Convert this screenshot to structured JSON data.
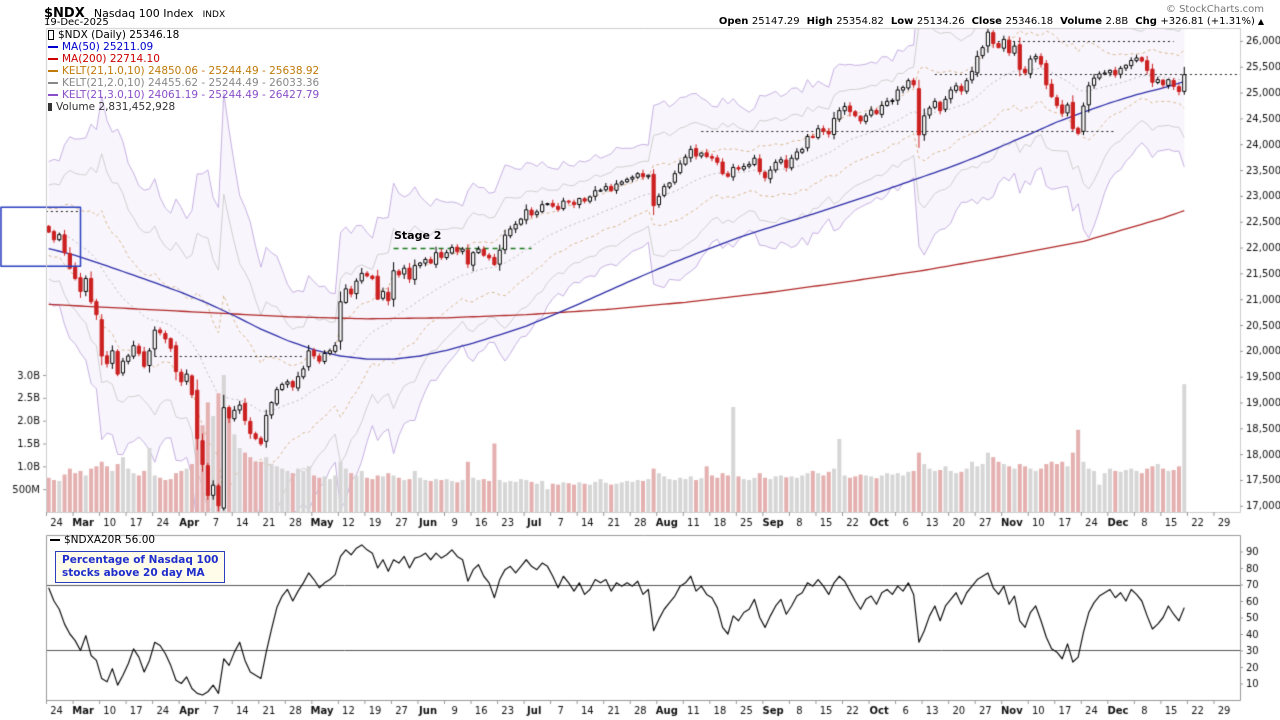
{
  "header": {
    "symbol": "$NDX",
    "name": "Nasdaq 100 Index",
    "exchange": "INDX",
    "date": "19-Dec-2025",
    "copyright": "© StockCharts.com",
    "quote_fields": [
      {
        "label": "Open",
        "value": "25147.29"
      },
      {
        "label": "High",
        "value": "25354.82"
      },
      {
        "label": "Low",
        "value": "25134.26"
      },
      {
        "label": "Close",
        "value": "25346.18"
      },
      {
        "label": "Volume",
        "value": "2.8B"
      },
      {
        "label": "Chg",
        "value": "+326.81 (+1.31%)"
      }
    ],
    "direction_arrow": "▲"
  },
  "main_legend": {
    "items": [
      {
        "label": "$NDX (Daily) 25346.18",
        "color": "#000000",
        "icon": "candlestick-icon"
      },
      {
        "label": "MA(50) 25211.09",
        "color": "#0000cc",
        "icon": "line-swatch-icon"
      },
      {
        "label": "MA(200) 22714.10",
        "color": "#cc0000",
        "icon": "line-swatch-icon"
      },
      {
        "label": "KELT(21,1.0,10) 24850.06 - 25244.49 - 25638.92",
        "color": "#c07a0a",
        "icon": "line-swatch-icon"
      },
      {
        "label": "KELT(21,2.0,10) 24455.62 - 25244.49 - 26033.36",
        "color": "#888888",
        "icon": "line-swatch-icon"
      },
      {
        "label": "KELT(21,3.0,10) 24061.19 - 25244.49 - 26427.79",
        "color": "#8a4fc8",
        "icon": "line-swatch-icon"
      },
      {
        "label": "Volume 2,831,452,928",
        "color": "#333333",
        "icon": "volume-bars-icon"
      }
    ]
  },
  "indicator_legend": {
    "label": "$NDXA20R 56.00",
    "color": "#000000"
  },
  "annotations": {
    "stage2": "Stage 2",
    "note_line1": "Percentage of Nasdaq 100",
    "note_line2": "stocks above 20 day MA"
  },
  "chart_data": [
    {
      "type": "candlestick",
      "title": "$NDX (Daily)",
      "last_close": 25346.18,
      "y_ticks": [
        26000,
        25500,
        25000,
        24500,
        24000,
        23500,
        23000,
        22500,
        22000,
        21500,
        21000,
        20500,
        20000,
        19500,
        19000,
        18500,
        18000,
        17500,
        17000
      ],
      "y_range": [
        16880,
        26250
      ],
      "volume_ticks": [
        [
          "3.0B",
          3
        ],
        [
          "2.5B",
          2.5
        ],
        [
          "2.0B",
          2
        ],
        [
          "1.5B",
          1.5
        ],
        [
          "1.0B",
          1
        ],
        [
          "500M",
          0.5
        ]
      ],
      "x_labels": [
        "24",
        "Mar",
        "10",
        "17",
        "24",
        "Apr",
        "7",
        "14",
        "21",
        "28",
        "May",
        "12",
        "19",
        "27",
        "Jun",
        "9",
        "16",
        "23",
        "Jul",
        "7",
        "14",
        "21",
        "28",
        "Aug",
        "11",
        "18",
        "25",
        "Sep",
        "8",
        "15",
        "22",
        "Oct",
        "6",
        "13",
        "20",
        "27",
        "Nov",
        "10",
        "17",
        "24",
        "Dec",
        "8",
        "15",
        "22",
        "29"
      ],
      "days_per_week": 5,
      "weeks_shown": 45,
      "prev_close": 22420,
      "closes": [
        22300,
        22150,
        22250,
        21900,
        21600,
        21400,
        21150,
        21400,
        20950,
        20700,
        19900,
        19750,
        20000,
        19550,
        19800,
        19900,
        20100,
        19950,
        19700,
        20000,
        20400,
        20350,
        20230,
        20050,
        19600,
        19400,
        19550,
        19150,
        18300,
        17800,
        17200,
        17400,
        17000,
        18900,
        18700,
        18850,
        18950,
        18650,
        18400,
        18300,
        18200,
        18750,
        19000,
        19250,
        19350,
        19400,
        19300,
        19500,
        19650,
        20000,
        19900,
        19800,
        19950,
        20000,
        20100,
        20950,
        21200,
        21100,
        21350,
        21500,
        21450,
        21400,
        21000,
        21150,
        20970,
        21550,
        21470,
        21600,
        21390,
        21650,
        21700,
        21770,
        21700,
        21900,
        21810,
        21900,
        22000,
        21920,
        21970,
        21680,
        21900,
        21970,
        21850,
        21800,
        21670,
        21950,
        22240,
        22360,
        22450,
        22550,
        22730,
        22630,
        22690,
        22830,
        22850,
        22800,
        22740,
        22900,
        22880,
        22830,
        22950,
        22900,
        22980,
        23100,
        23110,
        23180,
        23100,
        23230,
        23270,
        23320,
        23360,
        23430,
        23370,
        23400,
        22810,
        22990,
        23180,
        23250,
        23430,
        23620,
        23750,
        23900,
        23770,
        23830,
        23760,
        23730,
        23650,
        23430,
        23380,
        23550,
        23520,
        23570,
        23610,
        23730,
        23470,
        23350,
        23500,
        23650,
        23700,
        23550,
        23730,
        23850,
        23900,
        24150,
        24140,
        24300,
        24250,
        24200,
        24500,
        24650,
        24730,
        24630,
        24550,
        24450,
        24550,
        24660,
        24590,
        24750,
        24830,
        24850,
        25050,
        25100,
        25230,
        25150,
        24180,
        24550,
        24700,
        24830,
        24650,
        24870,
        25050,
        25130,
        25030,
        25230,
        25410,
        25700,
        25870,
        26170,
        25950,
        25870,
        26030,
        25770,
        25900,
        25450,
        25380,
        25650,
        25700,
        25550,
        25150,
        24920,
        24750,
        24600,
        24760,
        24300,
        24210,
        24740,
        25130,
        25280,
        25360,
        25380,
        25430,
        25340,
        25470,
        25530,
        25620,
        25670,
        25610,
        25430,
        25200,
        25250,
        25150,
        25250,
        25120,
        25020,
        25346.18
      ],
      "volumes_billions": [
        0.75,
        0.7,
        0.68,
        0.82,
        0.95,
        0.85,
        0.9,
        0.8,
        0.95,
        1.0,
        1.1,
        1.0,
        0.9,
        1.05,
        1.2,
        0.95,
        0.85,
        0.8,
        0.9,
        1.4,
        0.8,
        0.75,
        0.7,
        0.72,
        0.85,
        0.9,
        0.95,
        1.05,
        1.6,
        1.9,
        2.4,
        2.1,
        2.6,
        3.0,
        2.2,
        1.7,
        1.4,
        1.3,
        1.2,
        1.1,
        1.1,
        1.2,
        1.05,
        1.0,
        0.95,
        0.9,
        0.85,
        0.95,
        0.9,
        1.0,
        0.8,
        0.75,
        0.78,
        0.72,
        0.8,
        1.1,
        0.95,
        0.85,
        0.8,
        0.9,
        0.75,
        0.72,
        0.8,
        0.78,
        0.85,
        0.8,
        0.75,
        0.7,
        0.72,
        0.9,
        0.75,
        0.7,
        0.68,
        0.72,
        0.7,
        0.72,
        0.68,
        0.65,
        0.7,
        1.1,
        0.75,
        0.7,
        0.72,
        0.68,
        1.5,
        0.7,
        0.65,
        0.68,
        0.66,
        0.72,
        0.7,
        0.66,
        0.62,
        0.68,
        0.5,
        0.62,
        0.6,
        0.65,
        0.63,
        0.6,
        0.65,
        0.62,
        0.6,
        0.66,
        0.72,
        0.64,
        0.6,
        0.62,
        0.65,
        0.68,
        0.66,
        0.7,
        0.68,
        0.72,
        0.95,
        0.85,
        0.78,
        0.72,
        0.7,
        0.75,
        0.72,
        0.78,
        0.7,
        0.74,
        1.0,
        0.8,
        0.75,
        0.85,
        0.8,
        2.3,
        0.78,
        0.72,
        0.7,
        0.75,
        0.85,
        0.75,
        0.72,
        0.78,
        0.8,
        0.76,
        0.78,
        0.75,
        0.8,
        0.85,
        0.9,
        0.85,
        0.8,
        0.88,
        0.95,
        1.6,
        0.8,
        0.75,
        0.78,
        0.82,
        0.8,
        0.78,
        0.74,
        0.8,
        0.85,
        0.82,
        0.85,
        0.8,
        0.88,
        0.9,
        1.3,
        1.05,
        0.95,
        0.9,
        0.92,
        1.0,
        0.9,
        0.85,
        0.88,
        0.95,
        1.1,
        1.0,
        1.05,
        1.3,
        1.2,
        1.1,
        1.05,
        1.0,
        0.95,
        1.05,
        1.0,
        0.95,
        0.9,
        0.95,
        1.05,
        1.1,
        1.05,
        1.1,
        1.0,
        1.3,
        1.8,
        1.1,
        0.95,
        0.9,
        0.6,
        0.85,
        0.95,
        0.9,
        0.88,
        0.92,
        0.95,
        0.9,
        0.85,
        0.95,
        1.0,
        1.05,
        0.95,
        0.9,
        0.92,
        1.0,
        2.8
      ],
      "ma50_anchors": [
        [
          0,
          21980
        ],
        [
          5,
          21850
        ],
        [
          10,
          21680
        ],
        [
          15,
          21500
        ],
        [
          20,
          21320
        ],
        [
          25,
          21130
        ],
        [
          30,
          20920
        ],
        [
          35,
          20680
        ],
        [
          40,
          20420
        ],
        [
          45,
          20200
        ],
        [
          50,
          20020
        ],
        [
          55,
          19900
        ],
        [
          60,
          19840
        ],
        [
          65,
          19840
        ],
        [
          70,
          19900
        ],
        [
          75,
          20010
        ],
        [
          80,
          20150
        ],
        [
          85,
          20310
        ],
        [
          90,
          20480
        ],
        [
          95,
          20690
        ],
        [
          100,
          20910
        ],
        [
          105,
          21140
        ],
        [
          110,
          21370
        ],
        [
          115,
          21590
        ],
        [
          120,
          21800
        ],
        [
          125,
          22000
        ],
        [
          130,
          22190
        ],
        [
          135,
          22360
        ],
        [
          140,
          22520
        ],
        [
          145,
          22680
        ],
        [
          150,
          22850
        ],
        [
          155,
          23020
        ],
        [
          160,
          23200
        ],
        [
          165,
          23380
        ],
        [
          170,
          23560
        ],
        [
          175,
          23760
        ],
        [
          180,
          23980
        ],
        [
          185,
          24200
        ],
        [
          190,
          24430
        ],
        [
          195,
          24620
        ],
        [
          200,
          24800
        ],
        [
          205,
          24960
        ],
        [
          210,
          25090
        ],
        [
          214,
          25211
        ]
      ],
      "ma200_anchors": [
        [
          0,
          20900
        ],
        [
          15,
          20820
        ],
        [
          30,
          20740
        ],
        [
          45,
          20660
        ],
        [
          60,
          20620
        ],
        [
          75,
          20640
        ],
        [
          90,
          20700
        ],
        [
          105,
          20800
        ],
        [
          120,
          20940
        ],
        [
          135,
          21120
        ],
        [
          150,
          21330
        ],
        [
          165,
          21560
        ],
        [
          180,
          21830
        ],
        [
          195,
          22120
        ],
        [
          205,
          22420
        ],
        [
          210,
          22570
        ],
        [
          214,
          22714
        ]
      ],
      "keltner": {
        "period": 21,
        "atr_period": 10,
        "multipliers": [
          1,
          2,
          3
        ],
        "colors": {
          "k1": "#d8b78e",
          "k2": "#cfcfcf",
          "k3": "#c6b0e2",
          "fill": "rgba(198,180,228,0.13)",
          "center": "#bbbbbb"
        }
      },
      "hline_annotations": [
        {
          "value": 22700,
          "from_day": -9,
          "to_day": 6
        },
        {
          "value": 19900,
          "from_day": 20,
          "to_day": 48
        },
        {
          "value": 24250,
          "from_day": 123,
          "to_day": 201
        },
        {
          "value": 25350,
          "from_day": 167,
          "to_day": 226
        },
        {
          "value": 26000,
          "from_day": 177,
          "to_day": 212
        }
      ],
      "box_annotation": {
        "from_day": -9,
        "to_day": 6,
        "top": 22780,
        "bottom": 21640,
        "color": "#2b3fbf"
      },
      "stage2_line": {
        "value": 21980,
        "from_day": 65,
        "to_day": 91,
        "color": "#1a7a1a"
      },
      "colors": {
        "up": "#ffffff",
        "up_border": "#000000",
        "down": "#cc2020",
        "vol_up": "#d6d6d6",
        "vol_down": "#e4b0b0",
        "ma50": "#2e2ea8",
        "ma200": "#b02828",
        "annotation_dotted": "#222222"
      }
    },
    {
      "type": "line",
      "name": "$NDXA20R",
      "last": 56.0,
      "y_ticks": [
        90,
        80,
        70,
        60,
        50,
        40,
        30,
        20,
        10
      ],
      "y_range": [
        0,
        100
      ],
      "hlines": [
        70,
        30
      ],
      "color": "#111111",
      "values": [
        68,
        60,
        55,
        46,
        40,
        36,
        30,
        39,
        27,
        24,
        13,
        11,
        19,
        9,
        15,
        22,
        31,
        26,
        17,
        24,
        35,
        33,
        28,
        21,
        12,
        10,
        14,
        7,
        4,
        3,
        5,
        9,
        4,
        25,
        21,
        29,
        35,
        24,
        17,
        15,
        13,
        29,
        43,
        56,
        63,
        67,
        60,
        66,
        71,
        77,
        73,
        68,
        71,
        73,
        76,
        87,
        91,
        88,
        92,
        94,
        91,
        89,
        80,
        85,
        78,
        85,
        83,
        87,
        80,
        86,
        87,
        89,
        85,
        89,
        86,
        88,
        91,
        87,
        85,
        72,
        79,
        82,
        75,
        71,
        62,
        73,
        79,
        81,
        77,
        81,
        85,
        81,
        79,
        83,
        81,
        75,
        68,
        75,
        71,
        66,
        71,
        64,
        67,
        73,
        71,
        73,
        66,
        71,
        69,
        71,
        69,
        72,
        64,
        67,
        42,
        49,
        55,
        59,
        63,
        69,
        71,
        75,
        66,
        69,
        64,
        62,
        56,
        44,
        40,
        51,
        48,
        53,
        55,
        61,
        50,
        44,
        51,
        57,
        61,
        52,
        57,
        63,
        65,
        71,
        69,
        73,
        69,
        64,
        71,
        75,
        72,
        66,
        60,
        55,
        61,
        63,
        58,
        65,
        67,
        64,
        69,
        66,
        71,
        64,
        35,
        42,
        51,
        57,
        48,
        57,
        61,
        65,
        58,
        65,
        69,
        73,
        75,
        77,
        68,
        64,
        69,
        58,
        63,
        48,
        44,
        53,
        57,
        48,
        38,
        31,
        29,
        25,
        34,
        23,
        26,
        41,
        53,
        59,
        63,
        65,
        67,
        62,
        65,
        60,
        67,
        64,
        60,
        51,
        43,
        46,
        50,
        57,
        52,
        48,
        56
      ]
    }
  ]
}
